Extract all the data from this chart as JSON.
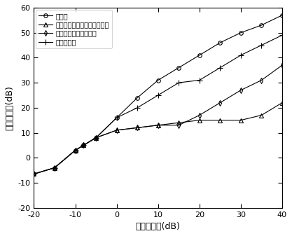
{
  "x": [
    -20,
    -15,
    -10,
    -8,
    -5,
    0,
    5,
    10,
    15,
    20,
    25,
    30,
    35,
    40
  ],
  "optimal": [
    -6.5,
    -4,
    3,
    5,
    8,
    16,
    24,
    31,
    36,
    41,
    46,
    50,
    53,
    57
  ],
  "shrinkage": [
    -6.5,
    -4,
    3,
    5,
    8,
    11,
    12,
    13,
    14,
    15,
    15,
    15,
    17,
    22
  ],
  "worst_case": [
    -6.5,
    -4,
    3,
    5,
    8,
    11,
    12,
    13,
    13,
    17,
    22,
    27,
    31,
    37
  ],
  "proposed": [
    -6.5,
    -4,
    3,
    5,
    8,
    16,
    20,
    25,
    30,
    31,
    36,
    41,
    45,
    49
  ],
  "xlabel": "输入信噪比(dB)",
  "ylabel": "输出信噪比(dB)",
  "legend": [
    "最优值",
    "基于缩减估计的波束形成方法",
    "最差情况性能优化方法",
    "本发明方法"
  ],
  "xlim": [
    -20,
    40
  ],
  "ylim": [
    -20,
    60
  ],
  "xticks": [
    -20,
    -10,
    0,
    10,
    20,
    30,
    40
  ],
  "yticks": [
    -20,
    -10,
    0,
    10,
    20,
    30,
    40,
    50,
    60
  ],
  "markers": [
    "o",
    "^",
    "d",
    "+"
  ],
  "markersize": [
    4,
    4,
    4,
    6
  ],
  "line_color": "#000000",
  "bg_color": "#ffffff",
  "tick_fontsize": 8,
  "label_fontsize": 9,
  "legend_fontsize": 7
}
